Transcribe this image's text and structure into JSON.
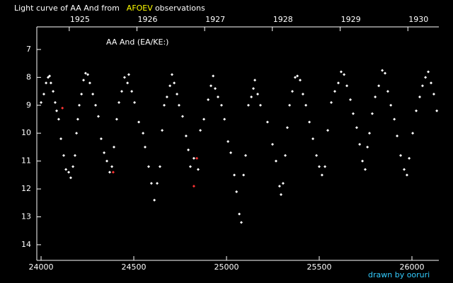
{
  "chart_data": {
    "type": "scatter",
    "title": "Light curve of AA And from",
    "title_source": "AFOEV",
    "title_end": "observations",
    "star_label": "AA And (EA/KE:)",
    "credit": "drawn by ooruri",
    "background": "#000000",
    "axis_color": "#ffffff",
    "source_color": "#ffff00",
    "credit_color": "#33ccff",
    "xlim": [
      23977,
      26145
    ],
    "xticks": [
      24000,
      24500,
      25000,
      25500,
      26000
    ],
    "x2ticks": [
      {
        "value": 24152,
        "label": "1925"
      },
      {
        "value": 24517,
        "label": "1926"
      },
      {
        "value": 24882,
        "label": "1927"
      },
      {
        "value": 25247,
        "label": "1928"
      },
      {
        "value": 25613,
        "label": "1929"
      },
      {
        "value": 25978,
        "label": "1930"
      }
    ],
    "ylim": [
      6.19,
      14.56
    ],
    "y_inverted": true,
    "yticks": [
      7,
      8,
      9,
      10,
      11,
      12,
      13,
      14
    ],
    "series": [
      {
        "color": "#ffffff",
        "x": [
          24000,
          24015,
          24027,
          24038,
          24046,
          24053,
          24065,
          24076,
          24084,
          24095,
          24107,
          24122,
          24134,
          24149,
          24160,
          24172,
          24183,
          24191,
          24198,
          24206,
          24218,
          24229,
          24240,
          24252,
          24263,
          24279,
          24294,
          24309,
          24324,
          24340,
          24355,
          24370,
          24382,
          24393,
          24408,
          24420,
          24435,
          24450,
          24466,
          24473,
          24489,
          24504,
          24527,
          24550,
          24561,
          24580,
          24595,
          24611,
          24626,
          24641,
          24653,
          24664,
          24679,
          24695,
          24706,
          24718,
          24733,
          24744,
          24763,
          24782,
          24794,
          24805,
          24824,
          24847,
          24859,
          24878,
          24901,
          24916,
          24928,
          24939,
          24954,
          24973,
          24989,
          25008,
          25023,
          25042,
          25054,
          25069,
          25080,
          25092,
          25103,
          25118,
          25134,
          25145,
          25153,
          25168,
          25183,
          25221,
          25248,
          25267,
          25286,
          25294,
          25305,
          25317,
          25328,
          25340,
          25355,
          25370,
          25382,
          25397,
          25412,
          25428,
          25447,
          25466,
          25485,
          25500,
          25515,
          25531,
          25546,
          25565,
          25584,
          25603,
          25618,
          25634,
          25649,
          25668,
          25683,
          25702,
          25718,
          25733,
          25748,
          25760,
          25771,
          25786,
          25802,
          25821,
          25840,
          25855,
          25870,
          25886,
          25905,
          25920,
          25939,
          25958,
          25973,
          25985,
          26004,
          26023,
          26042,
          26057,
          26073,
          26088,
          26103,
          26118,
          26134
        ],
        "values": [
          8.9,
          8.6,
          8.2,
          8.0,
          7.95,
          8.2,
          8.5,
          8.9,
          9.2,
          9.5,
          10.2,
          10.8,
          11.3,
          11.4,
          11.6,
          11.2,
          10.8,
          10.0,
          9.5,
          9.0,
          8.6,
          8.1,
          7.85,
          7.9,
          8.2,
          8.6,
          9.0,
          9.4,
          10.2,
          10.7,
          11.0,
          11.4,
          11.2,
          10.5,
          9.5,
          8.9,
          8.5,
          8.0,
          8.2,
          7.9,
          8.5,
          8.9,
          9.6,
          10.0,
          10.5,
          11.2,
          11.8,
          12.4,
          11.8,
          11.2,
          9.9,
          9.0,
          8.7,
          8.3,
          7.9,
          8.2,
          8.6,
          9.0,
          9.4,
          10.1,
          10.6,
          11.2,
          10.9,
          11.3,
          9.9,
          9.5,
          8.8,
          8.3,
          7.95,
          8.4,
          8.7,
          9.0,
          9.5,
          10.3,
          10.7,
          11.5,
          12.1,
          12.9,
          13.2,
          11.5,
          10.8,
          9.0,
          8.7,
          8.4,
          8.1,
          8.6,
          9.0,
          9.6,
          10.4,
          11.0,
          11.9,
          12.2,
          11.8,
          10.8,
          9.8,
          9.0,
          8.5,
          8.0,
          7.95,
          8.1,
          8.6,
          9.0,
          9.6,
          10.2,
          10.8,
          11.2,
          11.5,
          11.2,
          9.9,
          8.9,
          8.5,
          8.2,
          7.8,
          7.9,
          8.3,
          8.8,
          9.3,
          9.8,
          10.4,
          11.0,
          11.3,
          10.5,
          10.0,
          9.3,
          8.7,
          8.3,
          7.75,
          7.85,
          8.5,
          9.0,
          9.5,
          10.1,
          10.8,
          11.3,
          11.5,
          10.9,
          10.0,
          9.2,
          8.7,
          8.3,
          8.0,
          7.8,
          8.2,
          8.6,
          9.2
        ]
      },
      {
        "color": "#ff3333",
        "x": [
          24115,
          24389,
          24840,
          24824
        ],
        "values": [
          9.1,
          11.4,
          10.9,
          11.9
        ]
      }
    ]
  }
}
